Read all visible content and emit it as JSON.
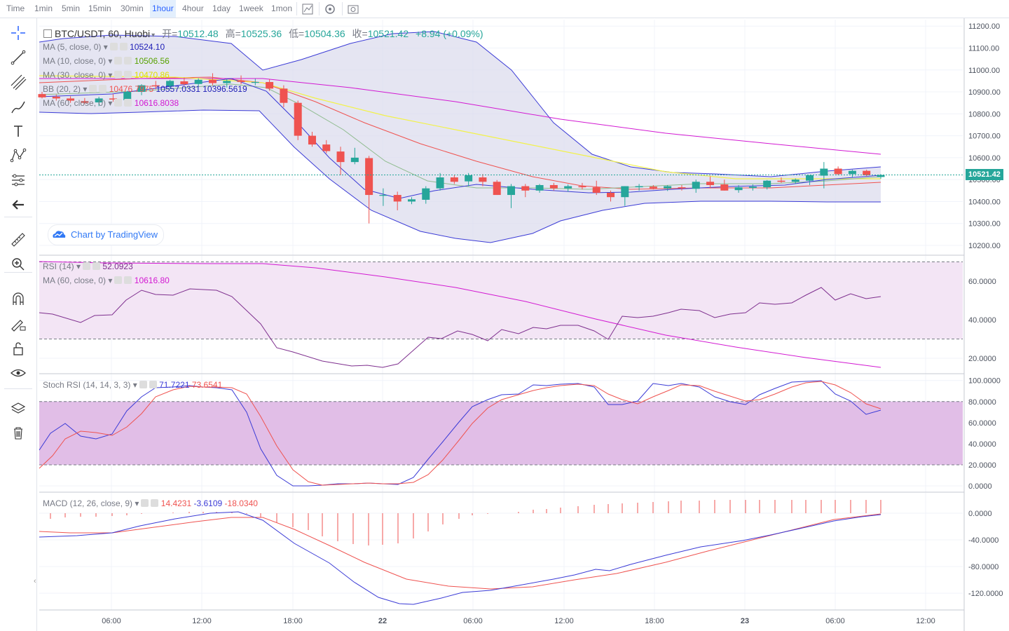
{
  "toolbar": {
    "timeframes": [
      "Time",
      "1min",
      "5min",
      "15min",
      "30min",
      "1hour",
      "4hour",
      "1day",
      "1week",
      "1mon"
    ],
    "active": "1hour"
  },
  "header": {
    "symbol": "BTC/USDT, 60, Huobi",
    "open_label": "开=",
    "open": "10512.48",
    "high_label": "高=",
    "high": "10525.36",
    "low_label": "低=",
    "low": "10504.36",
    "close_label": "收=",
    "close": "10521.42",
    "change": "+8.94 (+0.09%)"
  },
  "indicators": {
    "ma5": {
      "label": "MA (5, close, 0)",
      "value": "10524.10",
      "color": "#1d1db6"
    },
    "ma10": {
      "label": "MA (10, close, 0)",
      "value": "10506.56",
      "color": "#57a100"
    },
    "ma30": {
      "label": "MA (30, close, 0)",
      "value": "10470.86",
      "color": "#e8e83a"
    },
    "bb": {
      "label": "BB (20, 2)",
      "v1": "10476.7975",
      "v2": "10557.0331",
      "v3": "10396.5619"
    },
    "ma60": {
      "label": "MA (60, close, 0)",
      "value": "10616.8038",
      "color": "#d219d2"
    },
    "rsi": {
      "label": "RSI (14)",
      "value": "52.0923"
    },
    "rsi_ma": {
      "label": "MA (60, close, 0)",
      "value": "10616.80"
    },
    "stoch": {
      "label": "Stoch RSI (14, 14, 3, 3)",
      "k": "71.7221",
      "d": "73.6541"
    },
    "macd": {
      "label": "MACD (12, 26, close, 9)",
      "hist": "14.4231",
      "macd": "-3.6109",
      "signal": "-18.0340"
    }
  },
  "last_price_badge": "10521.42",
  "watermark": "Chart by TradingView",
  "colors": {
    "up": "#26a69a",
    "down": "#ef5350",
    "bb_fill": "#dcdcee",
    "rsi_fill": "#f3e5f5",
    "stoch_fill": "#e1bee7"
  },
  "chart_data": [
    {
      "type": "candlestick",
      "title": "BTC/USDT, 60, Huobi",
      "ylim": [
        10150,
        11250
      ],
      "y_ticks": [
        "11200.00",
        "11100.00",
        "11000.00",
        "10900.00",
        "10800.00",
        "10700.00",
        "10600.00",
        "10500.00",
        "10400.00",
        "10300.00",
        "10200.00"
      ],
      "x_ticks": [
        "06:00",
        "12:00",
        "18:00",
        "22",
        "06:00",
        "12:00",
        "18:00",
        "23",
        "06:00",
        "12:00"
      ],
      "candles": [
        [
          10890,
          10900,
          10870,
          10875
        ],
        [
          10878,
          10888,
          10860,
          10870
        ],
        [
          10870,
          10880,
          10850,
          10860
        ],
        [
          10858,
          10872,
          10845,
          10850
        ],
        [
          10852,
          10878,
          10835,
          10870
        ],
        [
          10870,
          10890,
          10855,
          10865
        ],
        [
          10862,
          10905,
          10850,
          10900
        ],
        [
          10900,
          10935,
          10885,
          10930
        ],
        [
          10930,
          10950,
          10912,
          10925
        ],
        [
          10925,
          10955,
          10915,
          10950
        ],
        [
          10948,
          10965,
          10930,
          10935
        ],
        [
          10936,
          10962,
          10925,
          10955
        ],
        [
          10955,
          10985,
          10930,
          10940
        ],
        [
          10940,
          10960,
          10920,
          10950
        ],
        [
          10950,
          10975,
          10935,
          10945
        ],
        [
          10945,
          10960,
          10930,
          10945
        ],
        [
          10945,
          10958,
          10905,
          10915
        ],
        [
          10915,
          10930,
          10830,
          10850
        ],
        [
          10850,
          10860,
          10680,
          10700
        ],
        [
          10700,
          10718,
          10650,
          10660
        ],
        [
          10660,
          10680,
          10620,
          10630
        ],
        [
          10628,
          10650,
          10520,
          10580
        ],
        [
          10580,
          10645,
          10570,
          10600
        ],
        [
          10598,
          10608,
          10300,
          10430
        ],
        [
          10430,
          10460,
          10380,
          10430
        ],
        [
          10430,
          10445,
          10360,
          10400
        ],
        [
          10400,
          10420,
          10388,
          10410
        ],
        [
          10408,
          10470,
          10390,
          10460
        ],
        [
          10460,
          10530,
          10450,
          10510
        ],
        [
          10510,
          10520,
          10480,
          10490
        ],
        [
          10492,
          10530,
          10470,
          10520
        ],
        [
          10510,
          10525,
          10470,
          10490
        ],
        [
          10490,
          10498,
          10430,
          10430
        ],
        [
          10430,
          10480,
          10370,
          10470
        ],
        [
          10470,
          10480,
          10420,
          10450
        ],
        [
          10450,
          10480,
          10440,
          10475
        ],
        [
          10475,
          10485,
          10450,
          10460
        ],
        [
          10460,
          10478,
          10445,
          10470
        ],
        [
          10470,
          10485,
          10455,
          10465
        ],
        [
          10465,
          10495,
          10430,
          10440
        ],
        [
          10440,
          10450,
          10400,
          10420
        ],
        [
          10420,
          10470,
          10380,
          10470
        ],
        [
          10465,
          10480,
          10450,
          10470
        ],
        [
          10468,
          10475,
          10455,
          10460
        ],
        [
          10460,
          10475,
          10448,
          10470
        ],
        [
          10465,
          10475,
          10450,
          10460
        ],
        [
          10458,
          10500,
          10440,
          10490
        ],
        [
          10490,
          10515,
          10460,
          10475
        ],
        [
          10478,
          10500,
          10450,
          10450
        ],
        [
          10452,
          10475,
          10440,
          10465
        ],
        [
          10462,
          10478,
          10450,
          10468
        ],
        [
          10465,
          10498,
          10455,
          10495
        ],
        [
          10495,
          10510,
          10485,
          10490
        ],
        [
          10490,
          10505,
          10480,
          10500
        ],
        [
          10495,
          10520,
          10475,
          10520
        ],
        [
          10518,
          10580,
          10460,
          10550
        ],
        [
          10550,
          10560,
          10520,
          10525
        ],
        [
          10525,
          10545,
          10510,
          10540
        ],
        [
          10540,
          10545,
          10515,
          10520
        ],
        [
          10512,
          10525,
          10504,
          10521
        ]
      ]
    },
    {
      "type": "line",
      "title": "RSI (14)",
      "ylim": [
        10,
        75
      ],
      "y_ticks": [
        "60.0000",
        "40.0000",
        "20.0000"
      ],
      "bands": [
        70,
        30
      ]
    },
    {
      "type": "line",
      "title": "Stoch RSI (14, 14, 3, 3)",
      "ylim": [
        -5,
        102
      ],
      "y_ticks": [
        "100.0000",
        "80.0000",
        "60.0000",
        "40.0000",
        "20.0000",
        "0.0000"
      ],
      "bands": [
        80,
        20
      ]
    },
    {
      "type": "bar",
      "title": "MACD (12, 26, close, 9)",
      "ylim": [
        -140,
        15
      ],
      "y_ticks": [
        "0.0000",
        "-40.0000",
        "-80.0000",
        "-120.0000"
      ]
    }
  ]
}
